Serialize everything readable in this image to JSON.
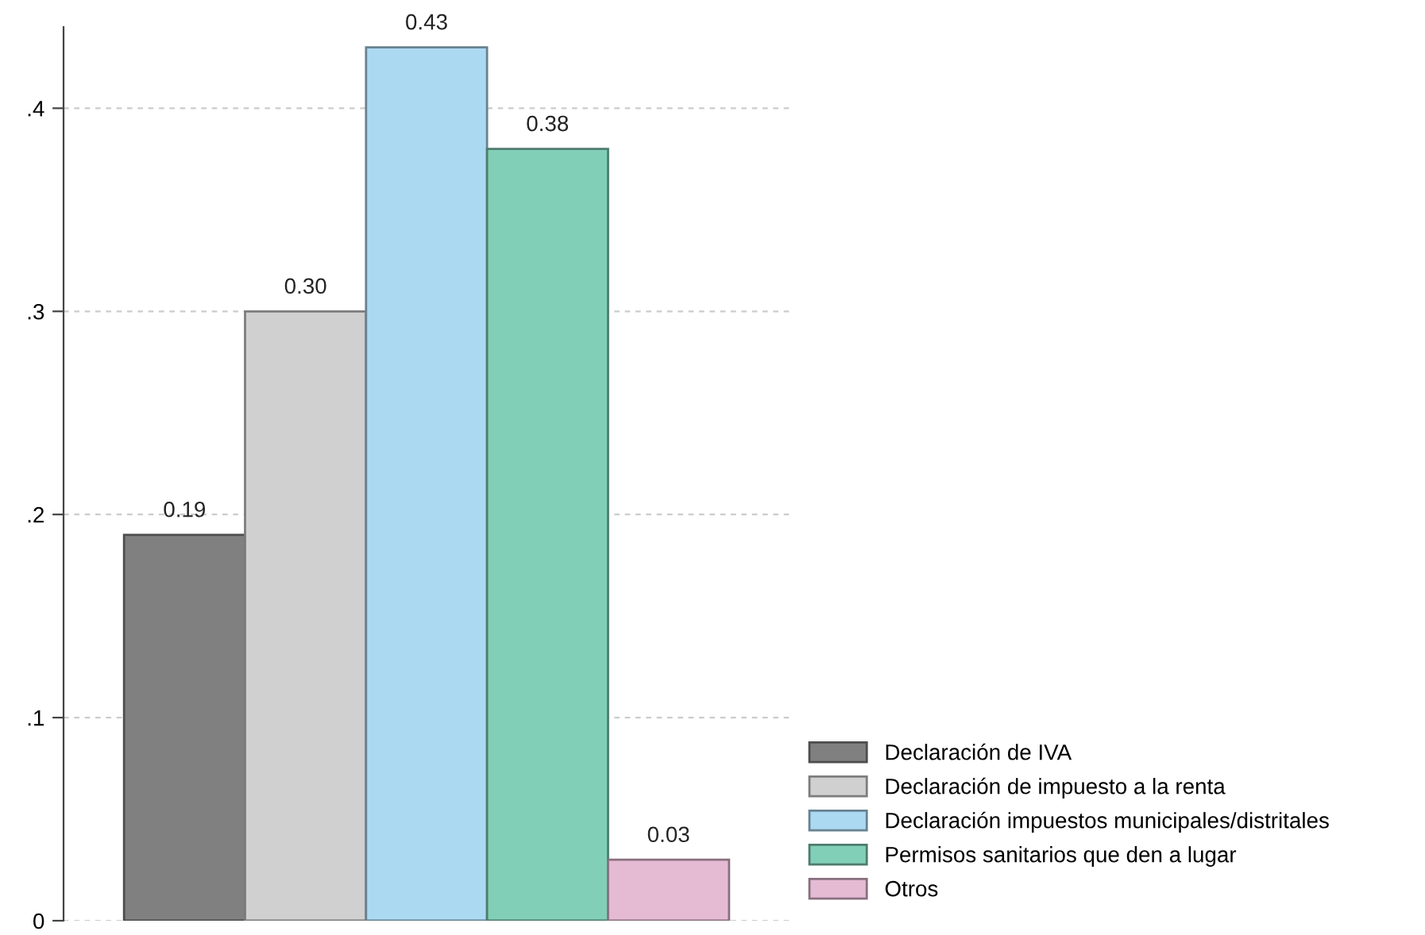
{
  "chart_data": {
    "type": "bar",
    "categories": [
      null
    ],
    "series": [
      {
        "name": "Declaración de IVA",
        "color": "#808080",
        "values": [
          0.19
        ],
        "value_labels": [
          "0.19"
        ]
      },
      {
        "name": "Declaración de impuesto a la renta",
        "color": "#d0d0d0",
        "values": [
          0.3
        ],
        "value_labels": [
          "0.30"
        ]
      },
      {
        "name": "Declaración impuestos municipales/distritales",
        "color": "#acd9f2",
        "values": [
          0.43
        ],
        "value_labels": [
          "0.43"
        ]
      },
      {
        "name": "Permisos sanitarios que den a lugar",
        "color": "#81cfb7",
        "values": [
          0.38
        ],
        "value_labels": [
          "0.38"
        ]
      },
      {
        "name": "Otros",
        "color": "#e5bad3",
        "values": [
          0.03
        ],
        "value_labels": [
          "0.03"
        ]
      }
    ],
    "ylim": [
      0,
      0.44
    ],
    "yticks": [
      {
        "value": 0,
        "label": "0"
      },
      {
        "value": 0.1,
        "label": ".1"
      },
      {
        "value": 0.2,
        "label": ".2"
      },
      {
        "value": 0.3,
        "label": ".3"
      },
      {
        "value": 0.4,
        "label": ".4"
      }
    ],
    "grid": "y",
    "legend": "bottom right"
  }
}
